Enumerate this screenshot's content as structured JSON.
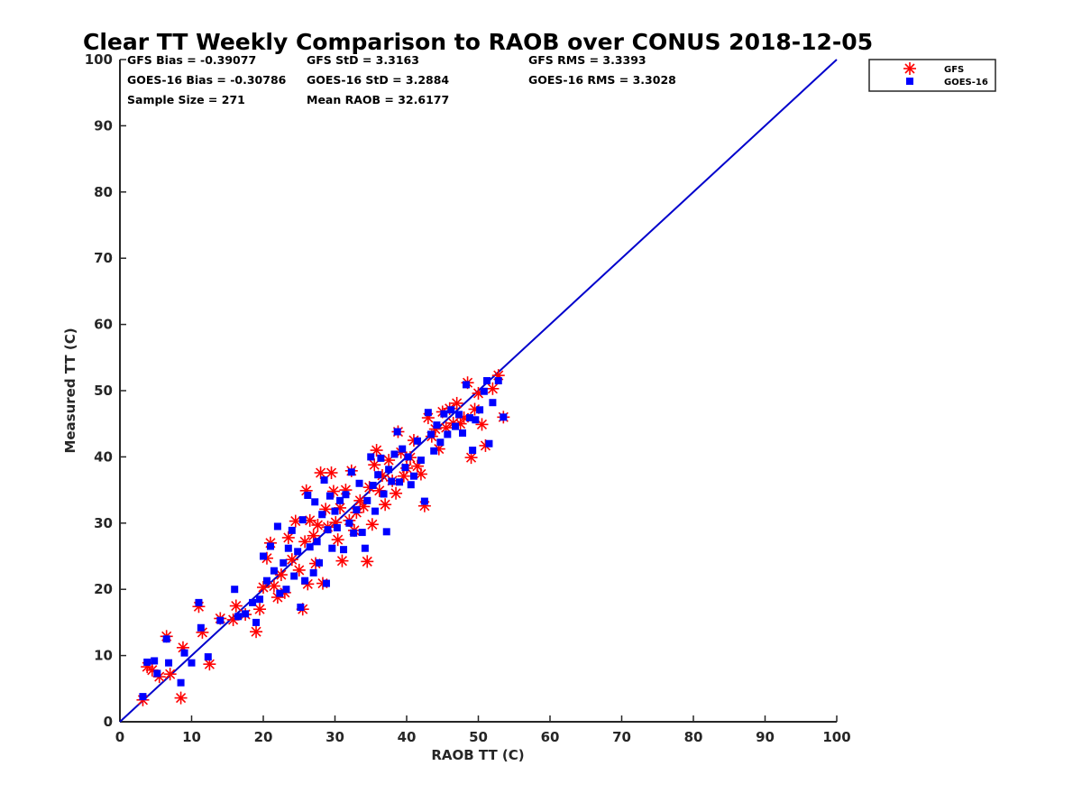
{
  "chart_data": {
    "type": "scatter",
    "title": "Clear TT Weekly Comparison to RAOB over CONUS 2018-12-05",
    "xlabel": "RAOB TT (C)",
    "ylabel": "Measured TT (C)",
    "xlim": [
      0,
      100
    ],
    "ylim": [
      0,
      100
    ],
    "xticks": [
      "0",
      "10",
      "20",
      "30",
      "40",
      "50",
      "60",
      "70",
      "80",
      "90",
      "100"
    ],
    "yticks": [
      "0",
      "10",
      "20",
      "30",
      "40",
      "50",
      "60",
      "70",
      "80",
      "90",
      "100"
    ],
    "legend_position": "top-right-outside",
    "stats": {
      "gfs_bias": "GFS Bias = -0.39077",
      "goes_bias": "GOES-16 Bias = -0.30786",
      "sample_size": "Sample Size = 271",
      "gfs_std": "GFS StD = 3.3163",
      "goes_std": "GOES-16 StD = 3.2884",
      "mean_raob": "Mean RAOB = 32.6177",
      "gfs_rms": "GFS RMS = 3.3393",
      "goes_rms": "GOES-16 RMS = 3.3028"
    },
    "reference_line": {
      "name": "1:1",
      "x": [
        0,
        100
      ],
      "y": [
        0,
        100
      ],
      "color": "#0000cc"
    },
    "series": [
      {
        "name": "GFS",
        "marker": "asterisk",
        "color": "#ff0000",
        "points": [
          [
            3.2,
            3.3
          ],
          [
            3.8,
            8.3
          ],
          [
            4.5,
            7.8
          ],
          [
            5.5,
            6.8
          ],
          [
            6.5,
            12.9
          ],
          [
            7,
            7.2
          ],
          [
            8.5,
            3.6
          ],
          [
            8.8,
            11.2
          ],
          [
            11,
            17.4
          ],
          [
            11.5,
            13.5
          ],
          [
            12.5,
            8.7
          ],
          [
            14,
            15.6
          ],
          [
            15.8,
            15.4
          ],
          [
            16.2,
            17.5
          ],
          [
            17.5,
            16.2
          ],
          [
            19,
            13.6
          ],
          [
            19.5,
            17
          ],
          [
            20,
            20.3
          ],
          [
            20.5,
            24.7
          ],
          [
            21,
            27
          ],
          [
            21.5,
            20.5
          ],
          [
            22,
            18.8
          ],
          [
            22.5,
            22.2
          ],
          [
            23,
            19.5
          ],
          [
            23.5,
            27.8
          ],
          [
            24,
            24.5
          ],
          [
            24.5,
            30.3
          ],
          [
            25,
            22.9
          ],
          [
            25.5,
            17
          ],
          [
            25.8,
            27.2
          ],
          [
            26,
            34.9
          ],
          [
            26.2,
            20.8
          ],
          [
            26.5,
            30.4
          ],
          [
            27,
            28.1
          ],
          [
            27.3,
            23.9
          ],
          [
            27.6,
            29.7
          ],
          [
            28,
            37.6
          ],
          [
            28.3,
            20.9
          ],
          [
            28.7,
            32.1
          ],
          [
            29,
            29.4
          ],
          [
            29.5,
            37.6
          ],
          [
            29.8,
            34.8
          ],
          [
            30.1,
            30.1
          ],
          [
            30.4,
            27.5
          ],
          [
            30.7,
            32.3
          ],
          [
            31,
            24.3
          ],
          [
            31.5,
            35
          ],
          [
            32,
            30.4
          ],
          [
            32.3,
            37.9
          ],
          [
            32.7,
            28.9
          ],
          [
            33,
            31.6
          ],
          [
            33.5,
            33.4
          ],
          [
            34,
            32.5
          ],
          [
            34.5,
            24.2
          ],
          [
            34.8,
            35.4
          ],
          [
            35.2,
            29.8
          ],
          [
            35.5,
            38.8
          ],
          [
            35.8,
            41
          ],
          [
            36.2,
            34.9
          ],
          [
            36.6,
            37.2
          ],
          [
            37,
            32.8
          ],
          [
            37.5,
            39.5
          ],
          [
            38,
            36.4
          ],
          [
            38.5,
            34.5
          ],
          [
            38.8,
            43.8
          ],
          [
            39.2,
            40.7
          ],
          [
            39.6,
            37.1
          ],
          [
            40,
            38.3
          ],
          [
            40.5,
            39.9
          ],
          [
            41,
            42.5
          ],
          [
            41.5,
            38.6
          ],
          [
            42,
            37.4
          ],
          [
            42.5,
            32.6
          ],
          [
            43,
            45.9
          ],
          [
            43.5,
            43.1
          ],
          [
            44,
            44.2
          ],
          [
            44.5,
            41.2
          ],
          [
            45,
            46.8
          ],
          [
            45.5,
            44.4
          ],
          [
            46,
            47.3
          ],
          [
            46.5,
            45.1
          ],
          [
            47,
            48.1
          ],
          [
            47.5,
            45
          ],
          [
            48,
            45.9
          ],
          [
            48.5,
            51.2
          ],
          [
            49,
            39.9
          ],
          [
            49.5,
            47.2
          ],
          [
            50,
            49.6
          ],
          [
            50.5,
            44.9
          ],
          [
            51,
            41.7
          ],
          [
            52,
            50.3
          ],
          [
            52.8,
            52.3
          ],
          [
            53.5,
            46
          ]
        ]
      },
      {
        "name": "GOES-16",
        "marker": "square",
        "color": "#0000ff",
        "points": [
          [
            3.2,
            3.8
          ],
          [
            3.8,
            9
          ],
          [
            4.8,
            9.2
          ],
          [
            5.2,
            7.3
          ],
          [
            6.5,
            12.5
          ],
          [
            6.8,
            8.9
          ],
          [
            8.5,
            5.9
          ],
          [
            9,
            10.4
          ],
          [
            10,
            8.9
          ],
          [
            11,
            18
          ],
          [
            11.3,
            14.2
          ],
          [
            12.3,
            9.8
          ],
          [
            14,
            15.3
          ],
          [
            16,
            20
          ],
          [
            16.5,
            15.9
          ],
          [
            17.5,
            16.3
          ],
          [
            18.5,
            18
          ],
          [
            19,
            15
          ],
          [
            19.5,
            18.5
          ],
          [
            20,
            25
          ],
          [
            20.5,
            21.3
          ],
          [
            21,
            26.5
          ],
          [
            21.5,
            22.8
          ],
          [
            22,
            29.5
          ],
          [
            22.3,
            19.4
          ],
          [
            22.8,
            24
          ],
          [
            23.2,
            20
          ],
          [
            23.5,
            26.2
          ],
          [
            24,
            28.9
          ],
          [
            24.3,
            22
          ],
          [
            24.8,
            25.7
          ],
          [
            25.2,
            17.3
          ],
          [
            25.5,
            30.5
          ],
          [
            25.8,
            21.3
          ],
          [
            26.2,
            34.2
          ],
          [
            26.5,
            26.4
          ],
          [
            27,
            22.5
          ],
          [
            27.2,
            33.2
          ],
          [
            27.5,
            27.2
          ],
          [
            27.8,
            24
          ],
          [
            28.2,
            31.3
          ],
          [
            28.5,
            36.5
          ],
          [
            28.8,
            20.9
          ],
          [
            29,
            29
          ],
          [
            29.3,
            34.1
          ],
          [
            29.6,
            26.2
          ],
          [
            30,
            31.8
          ],
          [
            30.3,
            29.3
          ],
          [
            30.7,
            33.4
          ],
          [
            31.2,
            26
          ],
          [
            31.5,
            34.3
          ],
          [
            32,
            30
          ],
          [
            32.3,
            37.7
          ],
          [
            32.6,
            28.5
          ],
          [
            33,
            32
          ],
          [
            33.4,
            36
          ],
          [
            33.8,
            28.6
          ],
          [
            34.2,
            26.2
          ],
          [
            34.5,
            33.4
          ],
          [
            35,
            40
          ],
          [
            35.3,
            35.7
          ],
          [
            35.6,
            31.8
          ],
          [
            36,
            37.3
          ],
          [
            36.4,
            39.8
          ],
          [
            36.8,
            34.4
          ],
          [
            37.2,
            28.7
          ],
          [
            37.5,
            38.1
          ],
          [
            37.9,
            36.3
          ],
          [
            38.3,
            40.4
          ],
          [
            38.7,
            43.8
          ],
          [
            39,
            36.2
          ],
          [
            39.4,
            41.2
          ],
          [
            39.8,
            38.4
          ],
          [
            40.2,
            40
          ],
          [
            40.6,
            35.8
          ],
          [
            41,
            37.1
          ],
          [
            41.5,
            42.4
          ],
          [
            42,
            39.5
          ],
          [
            42.5,
            33.3
          ],
          [
            43,
            46.7
          ],
          [
            43.4,
            43.4
          ],
          [
            43.8,
            40.9
          ],
          [
            44.2,
            44.8
          ],
          [
            44.7,
            42.2
          ],
          [
            45.2,
            46.5
          ],
          [
            45.7,
            43.4
          ],
          [
            46.2,
            47.1
          ],
          [
            46.8,
            44.6
          ],
          [
            47.3,
            46.4
          ],
          [
            47.8,
            43.6
          ],
          [
            48.3,
            50.9
          ],
          [
            48.8,
            45.9
          ],
          [
            49.2,
            41
          ],
          [
            49.6,
            45.6
          ],
          [
            50.2,
            47.1
          ],
          [
            50.8,
            49.9
          ],
          [
            51.2,
            51.5
          ],
          [
            51.5,
            42
          ],
          [
            52,
            48.2
          ],
          [
            52.8,
            51.5
          ],
          [
            53.5,
            46
          ]
        ]
      }
    ]
  }
}
